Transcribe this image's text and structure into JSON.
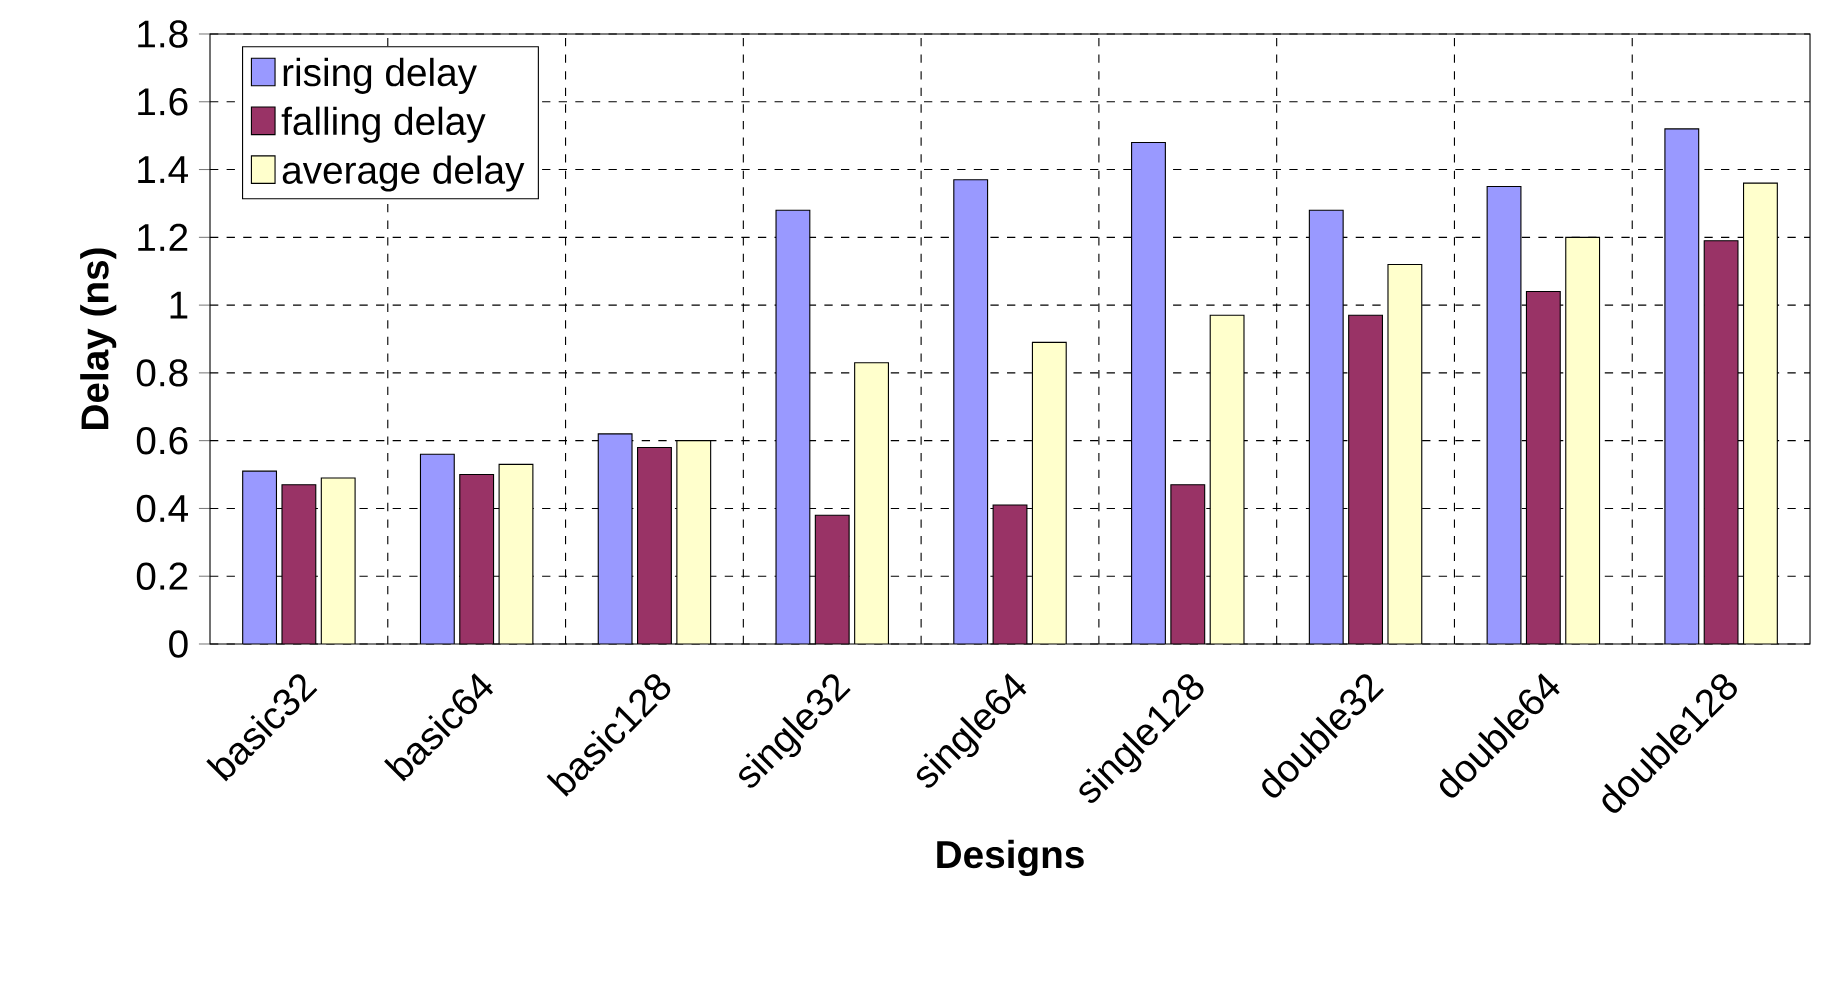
{
  "chart_data": {
    "type": "bar",
    "xlabel": "Designs",
    "ylabel": "Delay (ns)",
    "categories": [
      "basic32",
      "basic64",
      "basic128",
      "single32",
      "single64",
      "single128",
      "double32",
      "double64",
      "double128"
    ],
    "series": [
      {
        "name": "rising delay",
        "color": "#9999ff",
        "values": [
          0.51,
          0.56,
          0.62,
          1.28,
          1.37,
          1.48,
          1.28,
          1.35,
          1.52
        ]
      },
      {
        "name": "falling delay",
        "color": "#993366",
        "values": [
          0.47,
          0.5,
          0.58,
          0.38,
          0.41,
          0.47,
          0.97,
          1.04,
          1.19
        ]
      },
      {
        "name": "average delay",
        "color": "#ffffcc",
        "values": [
          0.49,
          0.53,
          0.6,
          0.83,
          0.89,
          0.97,
          1.12,
          1.2,
          1.36
        ]
      }
    ],
    "ylim": [
      0,
      1.8
    ],
    "yticks": [
      0,
      0.2,
      0.4,
      0.6,
      0.8,
      1,
      1.2,
      1.4,
      1.6,
      1.8
    ],
    "grid": true,
    "legend": "top left"
  }
}
